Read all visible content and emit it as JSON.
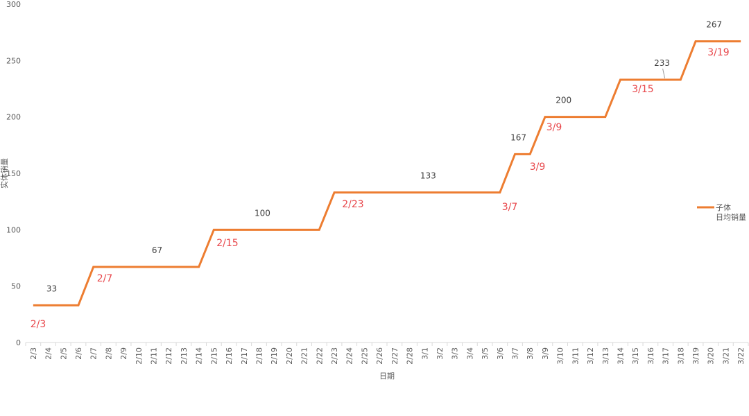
{
  "chart_data": {
    "type": "line",
    "y_label": "实体销量",
    "x_label": "日期",
    "categories": [
      "2/3",
      "2/4",
      "2/5",
      "2/6",
      "2/7",
      "2/8",
      "2/9",
      "2/10",
      "2/11",
      "2/12",
      "2/13",
      "2/14",
      "2/15",
      "2/16",
      "2/17",
      "2/18",
      "2/19",
      "2/20",
      "2/21",
      "2/22",
      "2/23",
      "2/24",
      "2/25",
      "2/26",
      "2/27",
      "2/28",
      "3/1",
      "3/2",
      "3/3",
      "3/4",
      "3/5",
      "3/6",
      "3/7",
      "3/8",
      "3/9",
      "3/10",
      "3/11",
      "3/12",
      "3/13",
      "3/14",
      "3/15",
      "3/16",
      "3/17",
      "3/18",
      "3/19",
      "3/20",
      "3/21",
      "3/22"
    ],
    "series": [
      {
        "name": "子体\n日均销量",
        "color": "#ed7d31",
        "values": [
          33,
          33,
          33,
          33,
          67,
          67,
          67,
          67,
          67,
          67,
          67,
          67,
          100,
          100,
          100,
          100,
          100,
          100,
          100,
          100,
          133,
          133,
          133,
          133,
          133,
          133,
          133,
          133,
          133,
          133,
          133,
          133,
          167,
          167,
          200,
          200,
          200,
          200,
          200,
          233,
          233,
          233,
          233,
          233,
          267,
          267,
          267,
          267
        ],
        "value_labels": [
          null,
          "33",
          null,
          null,
          null,
          null,
          null,
          null,
          "67",
          null,
          null,
          null,
          null,
          null,
          null,
          "100",
          null,
          null,
          null,
          null,
          null,
          null,
          null,
          null,
          null,
          null,
          "133",
          null,
          null,
          null,
          null,
          null,
          "167",
          null,
          null,
          "200",
          null,
          null,
          null,
          null,
          null,
          null,
          "233",
          null,
          null,
          "267",
          null,
          null
        ]
      }
    ],
    "annotations": [
      "2/3",
      "2/7",
      "2/15",
      "2/23",
      "3/7",
      "3/9",
      "3/9",
      "3/15",
      "3/19"
    ],
    "ylim": [
      0,
      300
    ],
    "yticks": [
      0,
      50,
      100,
      150,
      200,
      250,
      300
    ],
    "grid": false
  }
}
